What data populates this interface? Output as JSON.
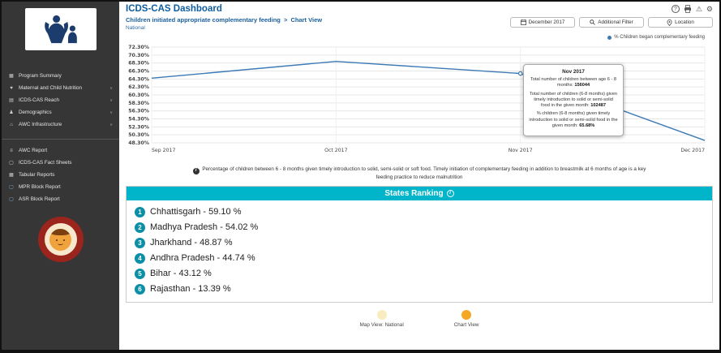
{
  "app": {
    "title": "ICDS-CAS Dashboard"
  },
  "header": {
    "breadcrumb": {
      "main": "Children initiated appropriate complementary feeding",
      "separator": ">",
      "view": "Chart View"
    },
    "level": "National",
    "filters": {
      "month": "December 2017",
      "additional": "Additional Filter",
      "location": "Location"
    }
  },
  "sidebar": {
    "nav": [
      {
        "label": "Program Summary",
        "icon": "dashboard-icon",
        "expandable": false
      },
      {
        "label": "Maternal and Child Nutrition",
        "icon": "nutrition-icon",
        "expandable": true
      },
      {
        "label": "ICDS-CAS Reach",
        "icon": "reach-icon",
        "expandable": true
      },
      {
        "label": "Demographics",
        "icon": "demographics-icon",
        "expandable": true
      },
      {
        "label": "AWC Infrastructure",
        "icon": "infrastructure-icon",
        "expandable": true
      }
    ],
    "reports": [
      {
        "label": "AWC Report",
        "icon": "report-icon"
      },
      {
        "label": "ICDS-CAS Fact Sheets",
        "icon": "factsheet-icon"
      },
      {
        "label": "Tabular Reports",
        "icon": "tabular-icon"
      },
      {
        "label": "MPR Block Report",
        "icon": "mpr-icon"
      },
      {
        "label": "ASR Block Report",
        "icon": "asr-icon"
      }
    ]
  },
  "chart_data": {
    "type": "line",
    "x": [
      "Sep 2017",
      "Oct 2017",
      "Nov 2017",
      "Dec 2017"
    ],
    "series": [
      {
        "name": "% Children began complementary feeding",
        "values": [
          64.5,
          68.7,
          65.68,
          48.9
        ]
      }
    ],
    "ylim": [
      48.3,
      72.3
    ],
    "ytick_labels": [
      "72.30%",
      "70.30%",
      "68.30%",
      "66.30%",
      "64.30%",
      "62.30%",
      "60.30%",
      "58.30%",
      "56.30%",
      "54.30%",
      "52.30%",
      "50.30%",
      "48.30%"
    ],
    "legend": "% Children began complementary feeding",
    "legend_position": "top-right",
    "grid": true
  },
  "tooltip": {
    "anchor_index": 2,
    "title": "Nov 2017",
    "lines": [
      {
        "text": "Total number of children between age 6 - 8 months:",
        "value": "156044"
      },
      {
        "text": "Total number of children (6-8 months) given timely introduction to solid or semi-solid food in the given month:",
        "value": "102487"
      },
      {
        "text": "% children (6-8 months) given timely introduction to solid or semi-solid food in the given month:",
        "value": "65.68%"
      }
    ]
  },
  "note": {
    "text": "Percentage of children between 6 - 8 months given timely introduction to solid, semi-solid or soft food. Timely initiation of complementary feeding in addition to breastmilk at 6 months of age is a key feeding practice to reduce malnutrition"
  },
  "ranking": {
    "title": "States Ranking",
    "items": [
      {
        "rank": "1",
        "label": "Chhattisgarh - 59.10 %"
      },
      {
        "rank": "2",
        "label": "Madhya Pradesh - 54.02 %"
      },
      {
        "rank": "3",
        "label": "Jharkhand - 48.87 %"
      },
      {
        "rank": "4",
        "label": "Andhra Pradesh - 44.74 %"
      },
      {
        "rank": "5",
        "label": "Bihar - 43.12 %"
      },
      {
        "rank": "6",
        "label": "Rajasthan - 13.39 %"
      }
    ]
  },
  "view_toggle": {
    "map": {
      "label": "Map View: National",
      "active": false
    },
    "chart": {
      "label": "Chart View",
      "active": true
    }
  },
  "colors": {
    "brand_blue": "#0d5c9e",
    "teal_header": "#00b5c9",
    "rank_circle_teal": "#0a8fa6",
    "chart_line_blue": "#3d7ab5",
    "active_orange": "#f5a623",
    "inactive_yellow": "#f9ecc0",
    "sidebar_bg": "#363636"
  },
  "icons": {
    "help-icon": "?",
    "alert-icon": "⚠",
    "gear-icon": "⚙",
    "chevron-down-icon": "∨",
    "dashboard-icon": "▦",
    "nutrition-icon": "♥",
    "reach-icon": "▤",
    "demographics-icon": "♟",
    "infrastructure-icon": "⌂",
    "report-icon": "≡",
    "factsheet-icon": "▢",
    "tabular-icon": "▦",
    "mpr-icon": "▢",
    "asr-icon": "▢",
    "info-icon": "i"
  }
}
